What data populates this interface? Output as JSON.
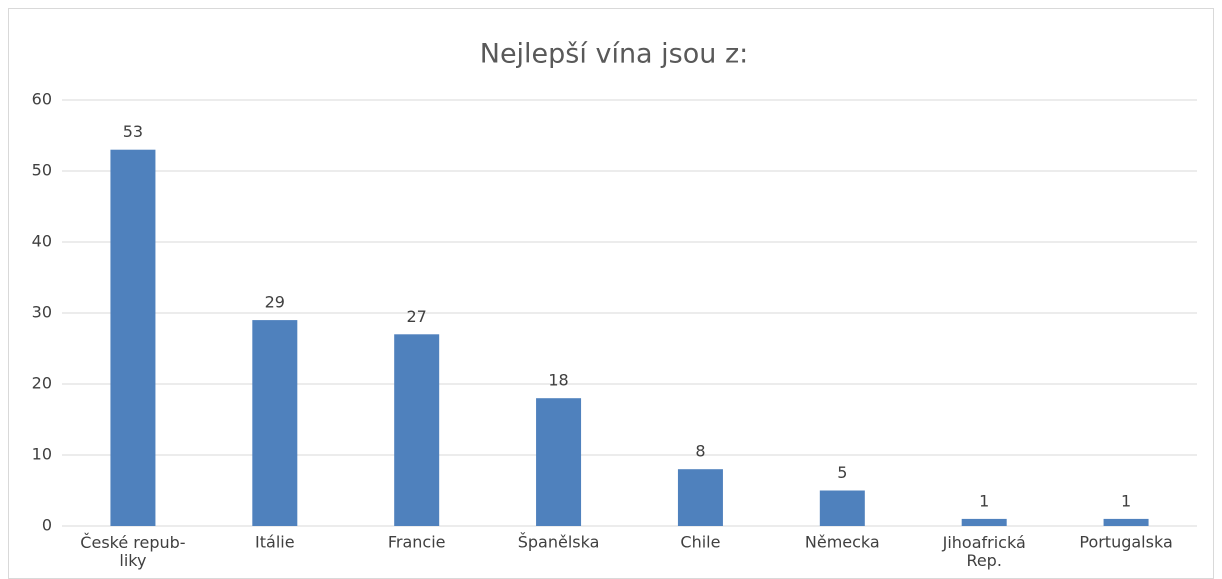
{
  "chart_data": {
    "type": "bar",
    "title": "Nejlepší vína jsou z:",
    "categories": [
      "České repub-\nliky",
      "Itálie",
      "Francie",
      "Španělska",
      "Chile",
      "Německa",
      "Jihoafrická\nRep.",
      "Portugalska"
    ],
    "values": [
      53,
      29,
      27,
      18,
      8,
      5,
      1,
      1
    ],
    "color": "#4f81bd",
    "ylim": [
      0,
      60
    ],
    "yticks": [
      0,
      10,
      20,
      30,
      40,
      50,
      60
    ],
    "grid": true
  }
}
